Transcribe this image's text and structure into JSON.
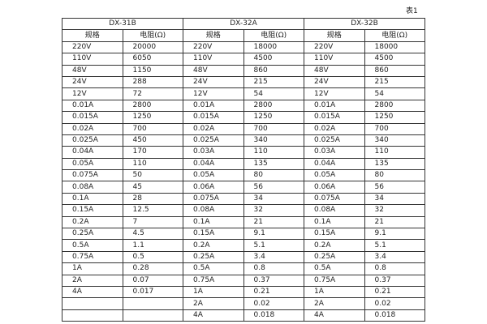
{
  "caption": "表1",
  "groups": [
    {
      "title": "DX-31B",
      "headers": [
        "规格",
        "电阻(Ω)"
      ],
      "rows": [
        [
          "220V",
          "20000"
        ],
        [
          "110V",
          "6050"
        ],
        [
          "48V",
          "1150"
        ],
        [
          "24V",
          "288"
        ],
        [
          "12V",
          "72"
        ],
        [
          "0.01A",
          "2800"
        ],
        [
          "0.015A",
          "1250"
        ],
        [
          "0.02A",
          "700"
        ],
        [
          "0.025A",
          "450"
        ],
        [
          "0.04A",
          "170"
        ],
        [
          "0.05A",
          "110"
        ],
        [
          "0.075A",
          "50"
        ],
        [
          "0.08A",
          "45"
        ],
        [
          "0.1A",
          "28"
        ],
        [
          "0.15A",
          "12.5"
        ],
        [
          "0.2A",
          "7"
        ],
        [
          "0.25A",
          "4.5"
        ],
        [
          "0.5A",
          "1.1"
        ],
        [
          "0.75A",
          "0.5"
        ],
        [
          "1A",
          "0.28"
        ],
        [
          "2A",
          "0.07"
        ],
        [
          "4A",
          "0.017"
        ]
      ]
    },
    {
      "title": "DX-32A",
      "headers": [
        "规格",
        "电阻(Ω)"
      ],
      "rows": [
        [
          "220V",
          "18000"
        ],
        [
          "110V",
          "4500"
        ],
        [
          "48V",
          "860"
        ],
        [
          "24V",
          "215"
        ],
        [
          "12V",
          "54"
        ],
        [
          "0.01A",
          "2800"
        ],
        [
          "0.015A",
          "1250"
        ],
        [
          "0.02A",
          "700"
        ],
        [
          "0.025A",
          "340"
        ],
        [
          "0.03A",
          "110"
        ],
        [
          "0.04A",
          "135"
        ],
        [
          "0.05A",
          "80"
        ],
        [
          "0.06A",
          "56"
        ],
        [
          "0.075A",
          "34"
        ],
        [
          "0.08A",
          "32"
        ],
        [
          "0.1A",
          "21"
        ],
        [
          "0.15A",
          "9.1"
        ],
        [
          "0.2A",
          "5.1"
        ],
        [
          "0.25A",
          "3.4"
        ],
        [
          "0.5A",
          "0.8"
        ],
        [
          "0.75A",
          "0.37"
        ],
        [
          "1A",
          "0.21"
        ],
        [
          "2A",
          "0.02"
        ],
        [
          "4A",
          "0.018"
        ]
      ]
    },
    {
      "title": "DX-32B",
      "headers": [
        "规格",
        "电阻(Ω)"
      ],
      "rows": [
        [
          "220V",
          "18000"
        ],
        [
          "110V",
          "4500"
        ],
        [
          "48V",
          "860"
        ],
        [
          "24V",
          "215"
        ],
        [
          "12V",
          "54"
        ],
        [
          "0.01A",
          "2800"
        ],
        [
          "0.015A",
          "1250"
        ],
        [
          "0.02A",
          "700"
        ],
        [
          "0.025A",
          "340"
        ],
        [
          "0.03A",
          "110"
        ],
        [
          "0.04A",
          "135"
        ],
        [
          "0.05A",
          "80"
        ],
        [
          "0.06A",
          "56"
        ],
        [
          "0.075A",
          "34"
        ],
        [
          "0.08A",
          "32"
        ],
        [
          "0.1A",
          "21"
        ],
        [
          "0.15A",
          "9.1"
        ],
        [
          "0.2A",
          "5.1"
        ],
        [
          "0.25A",
          "3.4"
        ],
        [
          "0.5A",
          "0.8"
        ],
        [
          "0.75A",
          "0.37"
        ],
        [
          "1A",
          "0.21"
        ],
        [
          "2A",
          "0.02"
        ],
        [
          "4A",
          "0.018"
        ]
      ]
    }
  ]
}
